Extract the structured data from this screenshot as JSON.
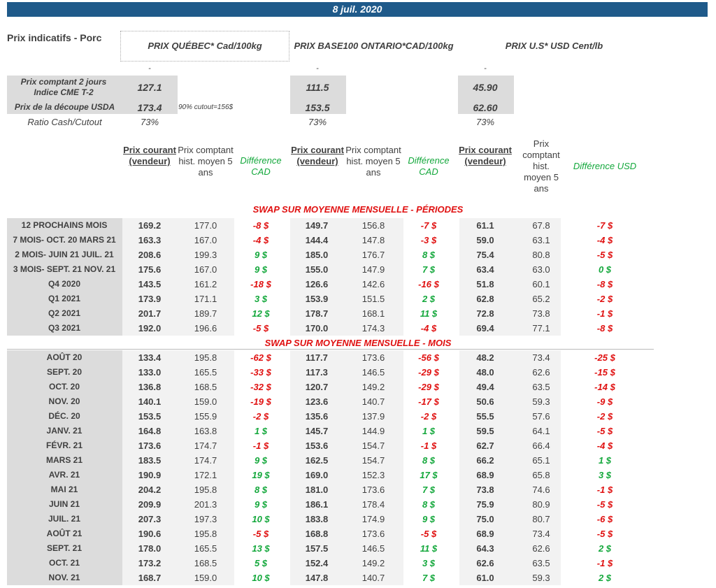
{
  "date": "8 juil. 2020",
  "title": "Prix indicatifs - Porc",
  "markets": [
    {
      "header": "PRIX QUÉBEC* Cad/100kg",
      "dash": "-",
      "cash": "127.1",
      "cutout": "173.4",
      "ratio": "73%"
    },
    {
      "header": "PRIX BASE100 ONTARIO*CAD/100kg",
      "dash": "-",
      "cash": "111.5",
      "cutout": "153.5",
      "ratio": "73%"
    },
    {
      "header": "PRIX U.S* USD Cent/lb",
      "dash": "-",
      "cash": "45.90",
      "cutout": "62.60",
      "ratio": "73%"
    }
  ],
  "labels": {
    "cash": "Prix comptant 2 jours Indice CME T-2",
    "cutout": "Prix de la découpe USDA",
    "ratio": "Ratio Cash/Cutout",
    "cutout_note": "90% cutout=156$"
  },
  "col_headers": {
    "current": "Prix courant (vendeur)",
    "hist": "Prix comptant hist. moyen 5 ans",
    "hist_us": "Prix comptant hist. moyen 5 ans",
    "diff_cad": "Différence CAD",
    "diff_usd": "Différence USD"
  },
  "sections": {
    "periods": "SWAP SUR MOYENNE MENSUELLE - PÉRIODES",
    "months": "SWAP SUR MOYENNE MENSUELLE - MOIS"
  },
  "colors": {
    "banner": "#1f5a8a",
    "positive": "#14a83c",
    "negative": "#e01010"
  },
  "periods": [
    [
      "12 PROCHAINS MOIS",
      "169.2",
      "177.0",
      "-8 $",
      "149.7",
      "156.8",
      "-7 $",
      "61.1",
      "67.8",
      "-7 $"
    ],
    [
      "7 MOIS- OCT. 20 MARS 21",
      "163.3",
      "167.0",
      "-4 $",
      "144.4",
      "147.8",
      "-3 $",
      "59.0",
      "63.1",
      "-4 $"
    ],
    [
      "2 MOIS- JUIN 21 JUIL. 21",
      "208.6",
      "199.3",
      "9 $",
      "185.0",
      "176.7",
      "8 $",
      "75.4",
      "80.8",
      "-5 $"
    ],
    [
      "3 MOIS- SEPT. 21 NOV. 21",
      "175.6",
      "167.0",
      "9 $",
      "155.0",
      "147.9",
      "7 $",
      "63.4",
      "63.0",
      "0 $"
    ],
    [
      "Q4 2020",
      "143.5",
      "161.2",
      "-18 $",
      "126.6",
      "142.6",
      "-16 $",
      "51.8",
      "60.1",
      "-8 $"
    ],
    [
      "Q1 2021",
      "173.9",
      "171.1",
      "3 $",
      "153.9",
      "151.5",
      "2 $",
      "62.8",
      "65.2",
      "-2 $"
    ],
    [
      "Q2 2021",
      "201.7",
      "189.7",
      "12 $",
      "178.7",
      "168.1",
      "11 $",
      "72.8",
      "73.8",
      "-1 $"
    ],
    [
      "Q3 2021",
      "192.0",
      "196.6",
      "-5 $",
      "170.0",
      "174.3",
      "-4 $",
      "69.4",
      "77.1",
      "-8 $"
    ]
  ],
  "months": [
    [
      "AOÛT 20",
      "133.4",
      "195.8",
      "-62 $",
      "117.7",
      "173.6",
      "-56 $",
      "48.2",
      "73.4",
      "-25 $"
    ],
    [
      "SEPT. 20",
      "133.0",
      "165.5",
      "-33 $",
      "117.3",
      "146.5",
      "-29 $",
      "48.0",
      "62.6",
      "-15 $"
    ],
    [
      "OCT. 20",
      "136.8",
      "168.5",
      "-32 $",
      "120.7",
      "149.2",
      "-29 $",
      "49.4",
      "63.5",
      "-14 $"
    ],
    [
      "NOV. 20",
      "140.1",
      "159.0",
      "-19 $",
      "123.6",
      "140.7",
      "-17 $",
      "50.6",
      "59.3",
      "-9 $"
    ],
    [
      "DÉC. 20",
      "153.5",
      "155.9",
      "-2 $",
      "135.6",
      "137.9",
      "-2 $",
      "55.5",
      "57.6",
      "-2 $"
    ],
    [
      "JANV. 21",
      "164.8",
      "163.8",
      "1 $",
      "145.7",
      "144.9",
      "1 $",
      "59.5",
      "64.1",
      "-5 $"
    ],
    [
      "FÉVR. 21",
      "173.6",
      "174.7",
      "-1 $",
      "153.6",
      "154.7",
      "-1 $",
      "62.7",
      "66.4",
      "-4 $"
    ],
    [
      "MARS 21",
      "183.5",
      "174.7",
      "9 $",
      "162.5",
      "154.7",
      "8 $",
      "66.2",
      "65.1",
      "1 $"
    ],
    [
      "AVR. 21",
      "190.9",
      "172.1",
      "19 $",
      "169.0",
      "152.3",
      "17 $",
      "68.9",
      "65.8",
      "3 $"
    ],
    [
      "MAI 21",
      "204.2",
      "195.8",
      "8 $",
      "181.0",
      "173.6",
      "7 $",
      "73.8",
      "74.6",
      "-1 $"
    ],
    [
      "JUIN 21",
      "209.9",
      "201.3",
      "9 $",
      "186.1",
      "178.4",
      "8 $",
      "75.9",
      "80.9",
      "-5 $"
    ],
    [
      "JUIL. 21",
      "207.3",
      "197.3",
      "10 $",
      "183.8",
      "174.9",
      "9 $",
      "75.0",
      "80.7",
      "-6 $"
    ],
    [
      "AOÛT 21",
      "190.6",
      "195.8",
      "-5 $",
      "168.8",
      "173.6",
      "-5 $",
      "68.9",
      "73.4",
      "-5 $"
    ],
    [
      "SEPT. 21",
      "178.0",
      "165.5",
      "13 $",
      "157.5",
      "146.5",
      "11 $",
      "64.3",
      "62.6",
      "2 $"
    ],
    [
      "OCT. 21",
      "173.2",
      "168.5",
      "5 $",
      "152.4",
      "149.2",
      "3 $",
      "62.6",
      "63.5",
      "-1 $"
    ],
    [
      "NOV. 21",
      "168.7",
      "159.0",
      "10 $",
      "147.8",
      "140.7",
      "7 $",
      "61.0",
      "59.3",
      "2 $"
    ]
  ]
}
